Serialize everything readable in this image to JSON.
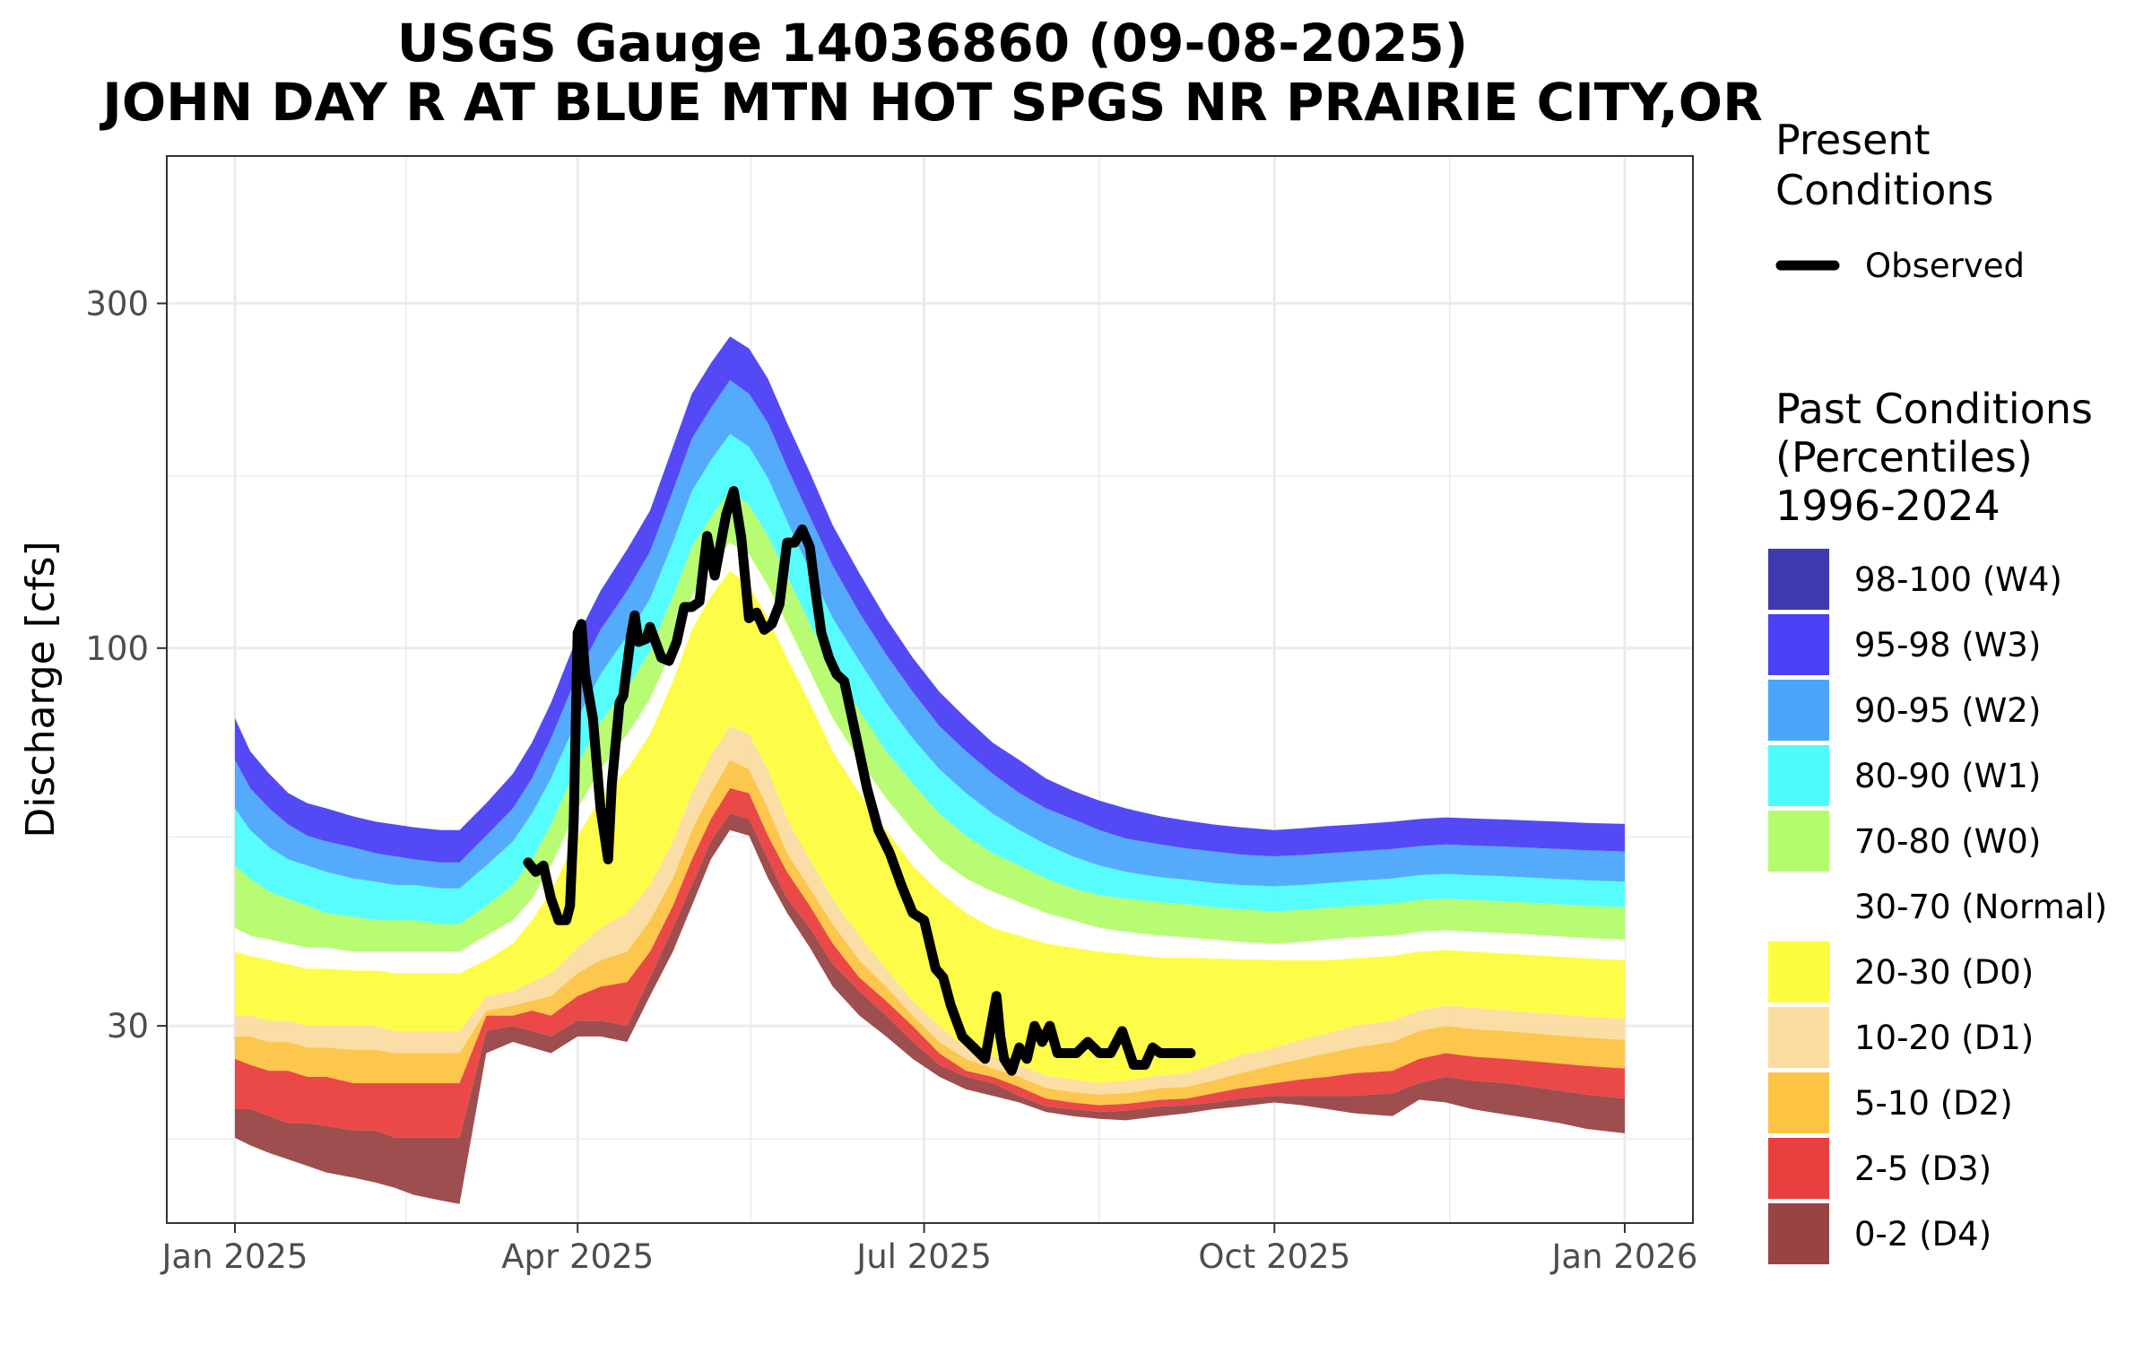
{
  "chart_data": {
    "type": "area",
    "title": "USGS Gauge 14036860 (09-08-2025)",
    "subtitle": "JOHN DAY R AT BLUE MTN HOT SPGS NR PRAIRIE CITY,OR",
    "xlabel": "",
    "ylabel": "Discharge [cfs]",
    "y_scale": "log",
    "x_range": [
      "2025-01-01",
      "2026-01-01"
    ],
    "ylim": [
      16,
      480
    ],
    "x_ticks": [
      {
        "date": "2025-01-01",
        "label": "Jan 2025"
      },
      {
        "date": "2025-04-01",
        "label": "Apr 2025"
      },
      {
        "date": "2025-07-01",
        "label": "Jul 2025"
      },
      {
        "date": "2025-10-01",
        "label": "Oct 2025"
      },
      {
        "date": "2026-01-01",
        "label": "Jan 2026"
      }
    ],
    "y_ticks": [
      {
        "value": 30,
        "label": "30"
      },
      {
        "value": 100,
        "label": "100"
      },
      {
        "value": 300,
        "label": "300"
      }
    ],
    "grid": true,
    "legend_position": "right",
    "legend": {
      "present_title": "Present\nConditions",
      "present_items": [
        {
          "name": "Observed",
          "color": "#000000"
        }
      ],
      "past_title": "Past Conditions\n(Percentiles)\n1996-2024",
      "past_items": [
        {
          "name": "98-100 (W4)",
          "color": "#3f3aad"
        },
        {
          "name": "95-98 (W3)",
          "color": "#4a40f5"
        },
        {
          "name": "90-95 (W2)",
          "color": "#4ba6fb"
        },
        {
          "name": "80-90 (W1)",
          "color": "#4efcfd"
        },
        {
          "name": "70-80 (W0)",
          "color": "#b4fc6c"
        },
        {
          "name": "30-70 (Normal)",
          "color": "#ffffff"
        },
        {
          "name": "20-30 (D0)",
          "color": "#fdfd3f"
        },
        {
          "name": "10-20 (D1)",
          "color": "#fbdca0"
        },
        {
          "name": "5-10 (D2)",
          "color": "#fdc342"
        },
        {
          "name": "2-5 (D3)",
          "color": "#e93f3e"
        },
        {
          "name": "0-2 (D4)",
          "color": "#994444"
        }
      ]
    },
    "percentile_bands": {
      "dates": [
        "2025-01-01",
        "2025-01-05",
        "2025-01-10",
        "2025-01-15",
        "2025-01-20",
        "2025-01-25",
        "2025-02-01",
        "2025-02-07",
        "2025-02-12",
        "2025-02-17",
        "2025-02-24",
        "2025-03-01",
        "2025-03-08",
        "2025-03-15",
        "2025-03-20",
        "2025-03-25",
        "2025-04-01",
        "2025-04-07",
        "2025-04-14",
        "2025-04-20",
        "2025-04-26",
        "2025-05-01",
        "2025-05-06",
        "2025-05-11",
        "2025-05-16",
        "2025-05-21",
        "2025-05-26",
        "2025-06-01",
        "2025-06-07",
        "2025-06-14",
        "2025-06-21",
        "2025-06-28",
        "2025-07-05",
        "2025-07-12",
        "2025-07-19",
        "2025-07-26",
        "2025-08-02",
        "2025-08-09",
        "2025-08-16",
        "2025-08-23",
        "2025-09-01",
        "2025-09-08",
        "2025-09-15",
        "2025-09-22",
        "2025-10-01",
        "2025-10-08",
        "2025-10-15",
        "2025-10-22",
        "2025-11-01",
        "2025-11-08",
        "2025-11-15",
        "2025-11-22",
        "2025-12-01",
        "2025-12-08",
        "2025-12-15",
        "2025-12-22",
        "2026-01-01"
      ],
      "boundaries": [
        [
          21,
          20.5,
          20,
          19.6,
          19.2,
          18.8,
          18.5,
          18.2,
          17.9,
          17.5,
          17.2,
          17.0,
          27.5,
          28.5,
          28.0,
          27.5,
          29.0,
          29.0,
          28.5,
          33.0,
          38.0,
          44.0,
          51.0,
          56.0,
          55.0,
          48.0,
          43.0,
          38.5,
          34.0,
          31.0,
          29.0,
          27.0,
          25.5,
          24.5,
          24.0,
          23.5,
          22.8,
          22.5,
          22.3,
          22.2,
          22.5,
          22.7,
          23.0,
          23.2,
          23.5,
          23.3,
          23.0,
          22.7,
          22.5,
          23.7,
          23.5,
          23.0,
          22.6,
          22.3,
          22.0,
          21.6,
          21.3
        ],
        [
          23,
          23,
          22.5,
          22,
          22,
          21.8,
          21.5,
          21.5,
          21.0,
          21.0,
          21.0,
          21.0,
          29.5,
          30.0,
          29.5,
          29.0,
          30.5,
          30.5,
          30.0,
          35.0,
          41.0,
          47.0,
          54.0,
          59.0,
          58.0,
          51.0,
          45.0,
          41.0,
          36.5,
          33.5,
          31.0,
          28.5,
          26.5,
          25.5,
          25.0,
          24.0,
          23.2,
          23.0,
          22.8,
          22.9,
          23.2,
          23.3,
          23.5,
          23.8,
          24.0,
          24.0,
          24.0,
          24.0,
          24.2,
          25.0,
          25.5,
          25.2,
          25.0,
          24.7,
          24.4,
          24.1,
          23.8
        ],
        [
          27,
          26.5,
          26,
          26,
          25.5,
          25.5,
          25.0,
          25.0,
          25.0,
          25.0,
          25.0,
          25.0,
          31.0,
          31.0,
          31.5,
          31.0,
          33.0,
          34.0,
          34.5,
          38.0,
          44.0,
          51.0,
          58.0,
          64.0,
          63.0,
          55.0,
          49.0,
          44.0,
          39.0,
          35.0,
          32.5,
          30.0,
          27.5,
          26.0,
          25.5,
          24.7,
          23.8,
          23.5,
          23.3,
          23.4,
          23.7,
          23.8,
          24.2,
          24.6,
          25.0,
          25.3,
          25.5,
          25.8,
          26.0,
          27.0,
          27.5,
          27.2,
          27.0,
          26.8,
          26.6,
          26.4,
          26.2
        ],
        [
          29,
          29,
          28.5,
          28.5,
          28,
          28,
          27.8,
          27.8,
          27.5,
          27.5,
          27.5,
          27.5,
          31.5,
          32.0,
          32.5,
          33.0,
          35.5,
          37.0,
          38.0,
          42.0,
          48.0,
          56.0,
          63.0,
          70.0,
          68.0,
          60.0,
          52.0,
          46.5,
          41.5,
          37.0,
          34.0,
          31.0,
          28.5,
          27.0,
          26.2,
          25.5,
          24.6,
          24.3,
          24.1,
          24.2,
          24.6,
          24.7,
          25.2,
          25.8,
          26.5,
          27.0,
          27.5,
          28.0,
          28.5,
          29.5,
          30.0,
          29.7,
          29.5,
          29.3,
          29.1,
          28.9,
          28.7
        ],
        [
          31,
          31,
          30.5,
          30.5,
          30,
          30,
          30.0,
          30.0,
          29.5,
          29.5,
          29.5,
          29.5,
          33.0,
          33.5,
          34.5,
          35.5,
          38.5,
          41.0,
          43.0,
          47.0,
          54.0,
          63.0,
          71.0,
          78.0,
          76.0,
          68.0,
          58.0,
          51.0,
          45.0,
          40.0,
          36.0,
          32.5,
          30.0,
          28.0,
          27.2,
          26.5,
          25.6,
          25.3,
          25.0,
          25.2,
          25.6,
          25.8,
          26.5,
          27.3,
          28.0,
          28.7,
          29.3,
          30.0,
          30.5,
          31.5,
          32.0,
          31.8,
          31.5,
          31.3,
          31.1,
          30.9,
          30.7
        ],
        [
          38,
          37.5,
          37,
          36.5,
          36,
          36,
          35.8,
          35.8,
          35.5,
          35.5,
          35.5,
          35.5,
          37.0,
          39.0,
          42.0,
          46.0,
          55.0,
          62.0,
          68.0,
          76.0,
          90.0,
          106,
          118,
          128,
          122,
          110,
          97,
          84,
          72,
          63,
          56,
          50,
          46,
          43,
          41,
          40,
          39,
          38.5,
          38,
          37.7,
          37.3,
          37.3,
          37.2,
          37.1,
          37.0,
          37.0,
          37.0,
          37.2,
          37.5,
          38.0,
          38.2,
          38.0,
          37.8,
          37.6,
          37.4,
          37.2,
          37.0
        ],
        [
          41,
          40,
          39.5,
          39,
          38.5,
          38.5,
          38.0,
          38.0,
          38.0,
          38.0,
          38.0,
          38.0,
          40.0,
          42.0,
          45.0,
          50.0,
          60.0,
          68.0,
          76.0,
          85.0,
          100,
          118,
          130,
          140,
          135,
          122,
          108,
          93,
          80,
          70,
          62,
          56,
          51,
          48,
          46,
          44.5,
          43,
          42,
          41,
          40.5,
          40,
          39.8,
          39.5,
          39.2,
          39.0,
          39.2,
          39.5,
          39.8,
          40.0,
          40.5,
          40.7,
          40.5,
          40.3,
          40.1,
          39.9,
          39.7,
          39.5
        ],
        [
          50,
          48,
          46,
          45,
          44,
          43,
          42.5,
          42,
          42,
          42,
          41.5,
          41.5,
          44,
          47,
          51,
          57,
          69,
          79,
          88,
          99,
          118,
          138,
          152,
          165,
          158,
          143,
          126,
          108,
          94,
          82,
          72,
          65,
          59,
          55,
          52,
          50,
          48,
          46.5,
          45.5,
          45,
          44.5,
          44.2,
          43.8,
          43.5,
          43.2,
          43.4,
          43.7,
          44.0,
          44.3,
          44.8,
          45.0,
          44.8,
          44.6,
          44.4,
          44.2,
          44.0,
          43.8
        ],
        [
          60,
          56,
          53,
          51,
          50,
          49,
          48,
          47.5,
          47,
          47,
          46.5,
          46.5,
          50,
          54,
          59,
          66,
          80,
          92,
          104,
          117,
          140,
          165,
          182,
          198,
          190,
          172,
          150,
          128,
          110,
          96,
          84,
          75,
          68,
          63,
          59,
          56,
          53.5,
          51.5,
          50,
          49,
          48.2,
          47.8,
          47.3,
          47.0,
          46.8,
          47.0,
          47.3,
          47.6,
          48.0,
          48.5,
          48.7,
          48.5,
          48.3,
          48.1,
          47.9,
          47.7,
          47.5
        ],
        [
          70,
          64,
          60,
          57,
          55,
          54,
          53,
          52,
          51.5,
          51,
          50.5,
          50.5,
          55,
          60,
          66,
          75,
          92,
          106,
          120,
          136,
          165,
          195,
          215,
          235,
          225,
          205,
          178,
          152,
          130,
          112,
          98,
          87,
          78,
          72,
          67,
          63,
          60,
          58,
          56,
          54.5,
          53.5,
          52.8,
          52.3,
          51.8,
          51.5,
          51.7,
          52.0,
          52.3,
          52.7,
          53.2,
          53.5,
          53.3,
          53.1,
          52.9,
          52.7,
          52.5,
          52.3
        ],
        [
          80,
          72,
          67,
          63,
          61,
          60,
          58.5,
          57.5,
          57,
          56.5,
          56,
          56,
          61,
          67,
          74,
          84,
          104,
          120,
          137,
          155,
          190,
          225,
          248,
          270,
          260,
          236,
          205,
          175,
          148,
          127,
          110,
          97,
          87,
          80,
          74,
          70,
          66,
          63.5,
          61.5,
          60,
          58.5,
          57.7,
          57.0,
          56.5,
          56.0,
          56.3,
          56.7,
          57.0,
          57.5,
          58.0,
          58.3,
          58.1,
          57.9,
          57.7,
          57.5,
          57.3,
          57.1
        ]
      ]
    },
    "observed": {
      "name": "Observed",
      "dates": [
        "2025-03-19",
        "2025-03-21",
        "2025-03-23",
        "2025-03-25",
        "2025-03-27",
        "2025-03-29",
        "2025-03-30",
        "2025-03-31",
        "2025-04-01",
        "2025-04-02",
        "2025-04-03",
        "2025-04-05",
        "2025-04-07",
        "2025-04-09",
        "2025-04-10",
        "2025-04-12",
        "2025-04-13",
        "2025-04-15",
        "2025-04-16",
        "2025-04-17",
        "2025-04-19",
        "2025-04-20",
        "2025-04-23",
        "2025-04-25",
        "2025-04-27",
        "2025-04-29",
        "2025-05-01",
        "2025-05-03",
        "2025-05-05",
        "2025-05-07",
        "2025-05-10",
        "2025-05-12",
        "2025-05-14",
        "2025-05-16",
        "2025-05-18",
        "2025-05-20",
        "2025-05-22",
        "2025-05-24",
        "2025-05-26",
        "2025-05-28",
        "2025-05-30",
        "2025-06-01",
        "2025-06-02",
        "2025-06-04",
        "2025-06-06",
        "2025-06-08",
        "2025-06-10",
        "2025-06-13",
        "2025-06-16",
        "2025-06-19",
        "2025-06-22",
        "2025-06-25",
        "2025-06-28",
        "2025-07-01",
        "2025-07-04",
        "2025-07-06",
        "2025-07-08",
        "2025-07-11",
        "2025-07-14",
        "2025-07-17",
        "2025-07-20",
        "2025-07-21",
        "2025-07-22",
        "2025-07-24",
        "2025-07-26",
        "2025-07-28",
        "2025-07-30",
        "2025-08-01",
        "2025-08-03",
        "2025-08-05",
        "2025-08-07",
        "2025-08-10",
        "2025-08-13",
        "2025-08-16",
        "2025-08-19",
        "2025-08-22",
        "2025-08-25",
        "2025-08-28",
        "2025-08-30",
        "2025-09-01",
        "2025-09-03",
        "2025-09-05",
        "2025-09-07",
        "2025-09-09"
      ],
      "values": [
        50.5,
        49,
        50,
        45,
        42,
        42,
        44,
        58,
        105,
        108,
        92,
        80,
        60,
        51,
        65,
        84,
        86,
        104,
        111,
        102,
        103,
        107,
        97,
        96,
        102,
        114,
        114,
        116,
        143,
        126,
        153,
        165,
        142,
        110,
        112,
        106,
        108,
        115,
        140,
        140,
        146,
        138,
        125,
        105,
        97,
        92,
        90,
        76,
        64,
        56,
        52,
        47,
        43,
        42,
        36,
        35,
        32,
        29,
        28,
        27,
        33,
        29,
        27,
        26,
        28,
        27,
        30,
        28.5,
        30,
        27.5,
        27.5,
        27.5,
        28.5,
        27.5,
        27.5,
        29.5,
        26.5,
        26.5,
        28.0,
        27.5,
        27.5,
        27.5,
        27.5,
        27.5
      ]
    }
  }
}
